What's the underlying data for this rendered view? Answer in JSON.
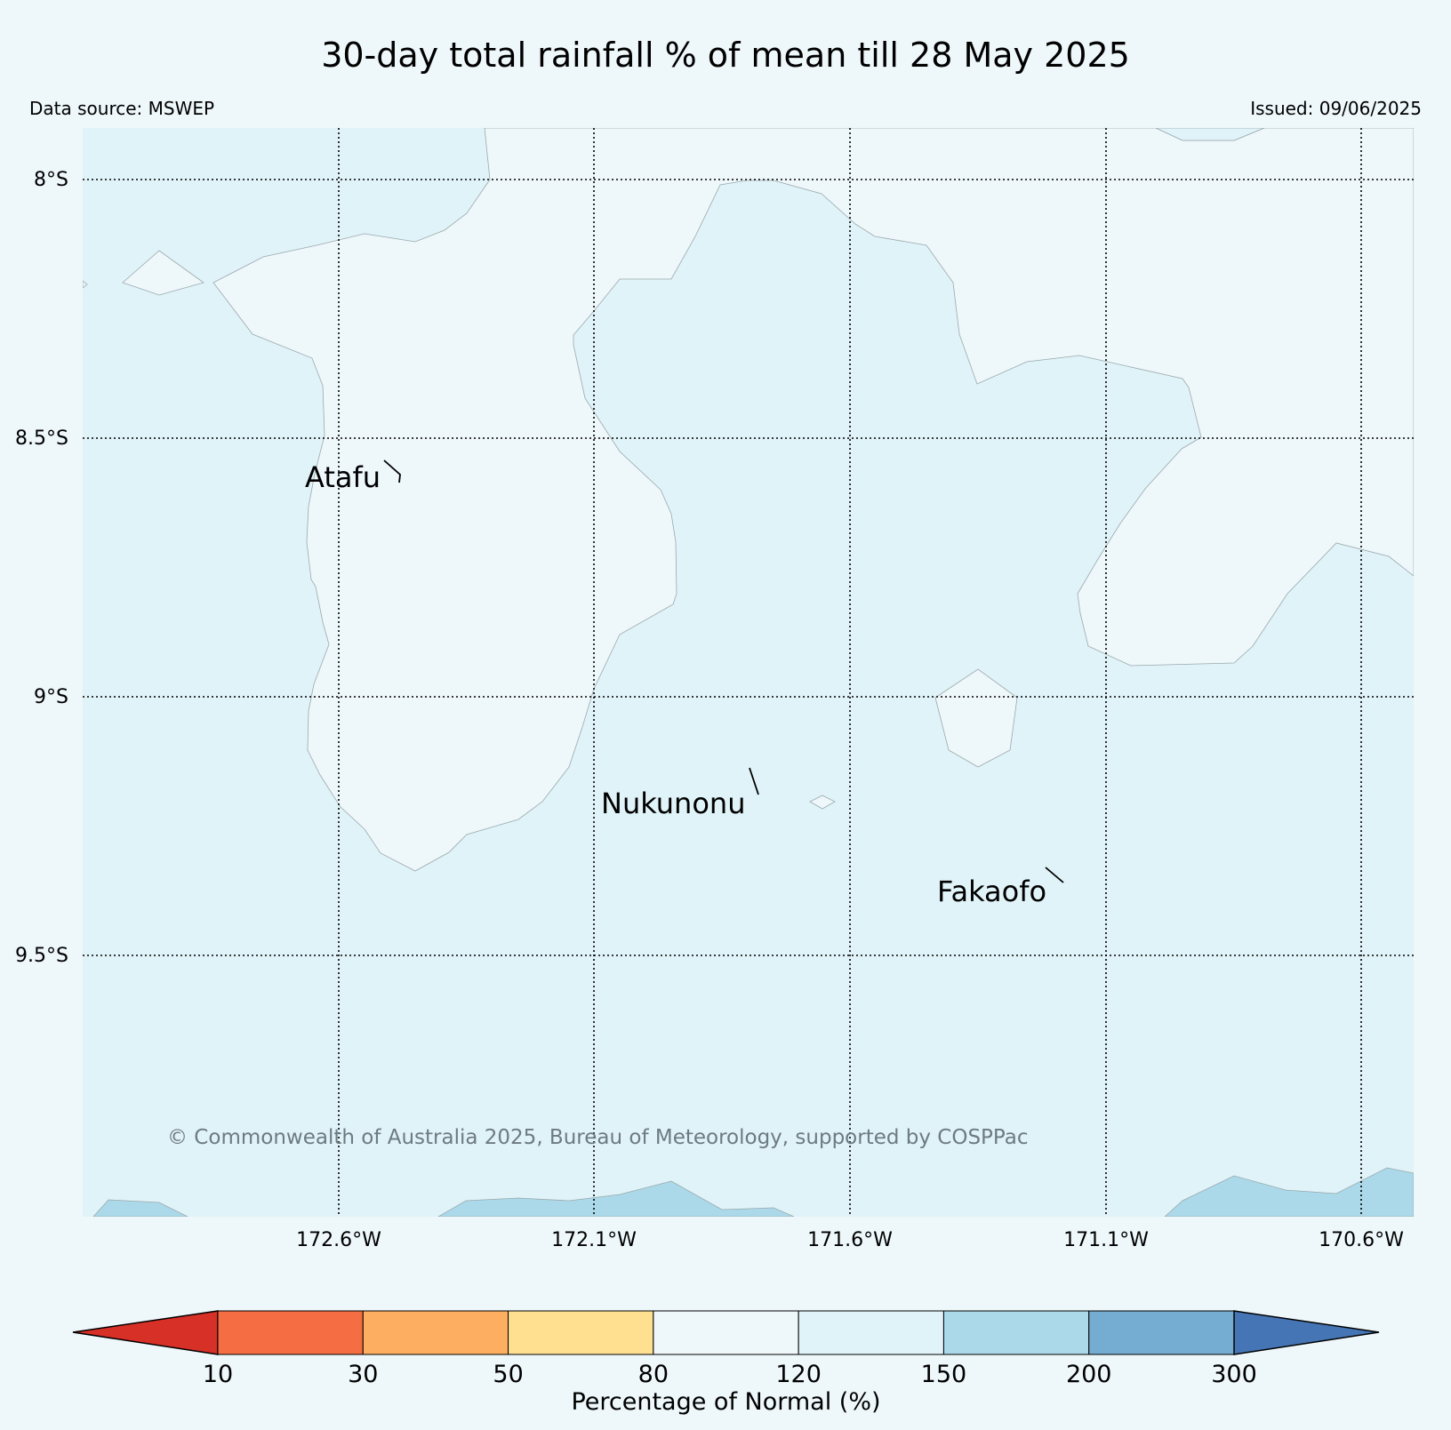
{
  "title": "30-day total rainfall % of mean till 28 May 2025",
  "data_source": "Data source: MSWEP",
  "issued": "Issued: 09/06/2025",
  "copyright": "© Commonwealth of Australia 2025, Bureau of Meteorology, supported by COSPPac",
  "latitude_labels": [
    "8°S",
    "8.5°S",
    "9°S",
    "9.5°S"
  ],
  "longitude_labels": [
    "172.6°W",
    "172.1°W",
    "171.6°W",
    "171.1°W",
    "170.6°W"
  ],
  "places": [
    {
      "name": "Atafu"
    },
    {
      "name": "Nukunonu"
    },
    {
      "name": "Fakaofo"
    }
  ],
  "colorbar": {
    "label": "Percentage of Normal (%)",
    "ticks": [
      "10",
      "30",
      "50",
      "80",
      "120",
      "150",
      "200",
      "300"
    ],
    "colors": [
      "#d73027",
      "#f46d43",
      "#fdae61",
      "#fee090",
      "#eef7fa",
      "#e0f3f8",
      "#abd9e9",
      "#74add1",
      "#4575b4"
    ],
    "extend": "both"
  },
  "colors": {
    "background": "#eef7fa",
    "band_80_120": "#eef7fa",
    "band_120_150": "#e0f3f8",
    "band_150_200": "#abd9e9"
  }
}
